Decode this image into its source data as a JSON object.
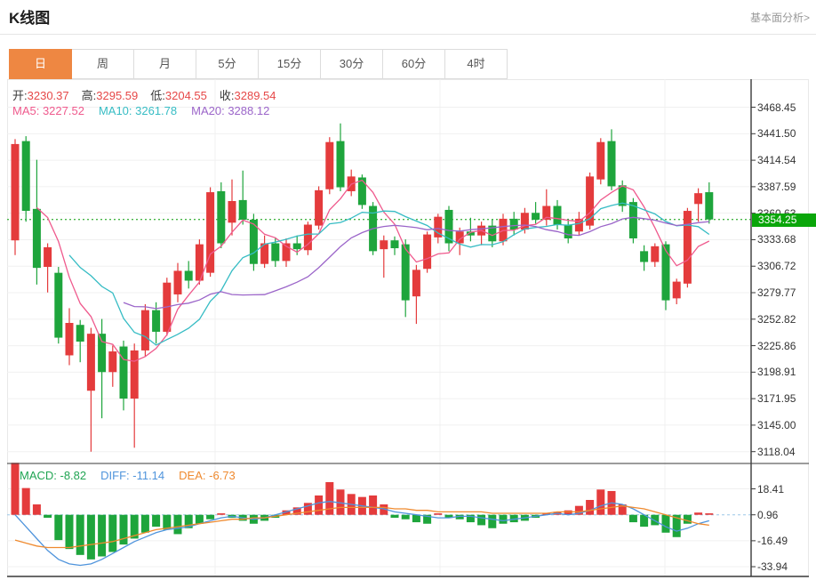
{
  "header": {
    "title": "K线图",
    "link_label": "基本面分析>"
  },
  "tabs": {
    "items": [
      {
        "label": "日",
        "active": true
      },
      {
        "label": "周",
        "active": false
      },
      {
        "label": "月",
        "active": false
      },
      {
        "label": "5分",
        "active": false
      },
      {
        "label": "15分",
        "active": false
      },
      {
        "label": "30分",
        "active": false
      },
      {
        "label": "60分",
        "active": false
      },
      {
        "label": "4时",
        "active": false
      }
    ]
  },
  "legend": {
    "ohlc": [
      {
        "label": "开:",
        "value": "3230.37"
      },
      {
        "label": "高:",
        "value": "3295.59"
      },
      {
        "label": "低:",
        "value": "3204.55"
      },
      {
        "label": "收:",
        "value": "3289.54"
      }
    ],
    "ma": [
      {
        "label": "MA5:",
        "value": "3227.52",
        "color": "#ef5a8d"
      },
      {
        "label": "MA10:",
        "value": "3261.78",
        "color": "#36bcc4"
      },
      {
        "label": "MA20:",
        "value": "3288.12",
        "color": "#9b65c9"
      }
    ]
  },
  "macd_legend": [
    {
      "label": "MACD:",
      "value": "-8.82",
      "color": "#21a453"
    },
    {
      "label": "DIFF:",
      "value": "-11.14",
      "color": "#4f94dc"
    },
    {
      "label": "DEA:",
      "value": "-6.73",
      "color": "#ef8a2f"
    }
  ],
  "price_axis": {
    "tick_labels": [
      "3468.45",
      "3441.50",
      "3414.54",
      "3387.59",
      "3360.63",
      "3333.68",
      "3306.72",
      "3279.77",
      "3252.82",
      "3225.86",
      "3198.91",
      "3171.95",
      "3145.00",
      "3118.04"
    ],
    "tick_values": [
      3468.45,
      3441.5,
      3414.54,
      3387.59,
      3360.63,
      3333.68,
      3306.72,
      3279.77,
      3252.82,
      3225.86,
      3198.91,
      3171.95,
      3145.0,
      3118.04
    ],
    "last_price": "3354.25",
    "last_price_value": 3354.25
  },
  "macd_axis": {
    "tick_labels": [
      "18.41",
      "0.96",
      "-16.49",
      "-33.94"
    ],
    "tick_values": [
      18.41,
      0.96,
      -16.49,
      -33.94
    ]
  },
  "colors": {
    "up": "#e43b3c",
    "down": "#1ea53c",
    "badge": "#0aa60a",
    "dotted_price_line": "#46b546",
    "ma5": "#ef5a8d",
    "ma10": "#36bcc4",
    "ma20": "#9b65c9",
    "diff": "#4f94dc",
    "dea": "#ef8a2f",
    "value_red": "#e64848",
    "grid": "#f0f0f0",
    "axis_dark": "#3a3a3a",
    "zero_dashed": "#9cc7e8",
    "tab_active": "#ee8742"
  },
  "chart_data": [
    {
      "type": "candlestick",
      "title": "K线图 (daily)",
      "ylim": [
        3106,
        3497
      ],
      "price_ticks": [
        3468.45,
        3441.5,
        3414.54,
        3387.59,
        3360.63,
        3333.68,
        3306.72,
        3279.77,
        3252.82,
        3225.86,
        3198.91,
        3171.95,
        3145.0,
        3118.04
      ],
      "last_price": 3354.25,
      "ma_windows": [
        5,
        10,
        20
      ],
      "ma_legend_values": {
        "MA5": 3227.52,
        "MA10": 3261.78,
        "MA20": 3288.12
      },
      "ohlc_legend": {
        "open": 3230.37,
        "high": 3295.59,
        "low": 3204.55,
        "close": 3289.54
      },
      "candles": [
        [
          3333,
          3436,
          3318,
          3431
        ],
        [
          3434,
          3439,
          3352,
          3363
        ],
        [
          3365,
          3415,
          3288,
          3305
        ],
        [
          3306,
          3330,
          3280,
          3326
        ],
        [
          3300,
          3306,
          3228,
          3234
        ],
        [
          3216,
          3264,
          3206,
          3249
        ],
        [
          3247,
          3252,
          3209,
          3230
        ],
        [
          3180,
          3244,
          3118,
          3238
        ],
        [
          3238,
          3253,
          3152,
          3199
        ],
        [
          3199,
          3226,
          3184,
          3220
        ],
        [
          3225,
          3231,
          3160,
          3172
        ],
        [
          3172,
          3228,
          3122,
          3221
        ],
        [
          3221,
          3268,
          3215,
          3262
        ],
        [
          3262,
          3270,
          3228,
          3240
        ],
        [
          3240,
          3295,
          3236,
          3290
        ],
        [
          3278,
          3310,
          3270,
          3302
        ],
        [
          3302,
          3312,
          3284,
          3292
        ],
        [
          3292,
          3334,
          3288,
          3329
        ],
        [
          3300,
          3387,
          3296,
          3382
        ],
        [
          3383,
          3392,
          3325,
          3330
        ],
        [
          3351,
          3395,
          3338,
          3373
        ],
        [
          3374,
          3404,
          3349,
          3354
        ],
        [
          3354,
          3360,
          3302,
          3309
        ],
        [
          3309,
          3338,
          3305,
          3330
        ],
        [
          3330,
          3336,
          3306,
          3312
        ],
        [
          3312,
          3335,
          3306,
          3330
        ],
        [
          3330,
          3338,
          3318,
          3324
        ],
        [
          3323,
          3352,
          3318,
          3349
        ],
        [
          3348,
          3388,
          3344,
          3384
        ],
        [
          3385,
          3438,
          3380,
          3433
        ],
        [
          3434,
          3452,
          3383,
          3387
        ],
        [
          3383,
          3405,
          3378,
          3398
        ],
        [
          3397,
          3400,
          3365,
          3369
        ],
        [
          3368,
          3372,
          3318,
          3322
        ],
        [
          3324,
          3338,
          3295,
          3333
        ],
        [
          3333,
          3337,
          3318,
          3325
        ],
        [
          3329,
          3334,
          3255,
          3272
        ],
        [
          3276,
          3308,
          3248,
          3303
        ],
        [
          3304,
          3342,
          3300,
          3339
        ],
        [
          3336,
          3360,
          3330,
          3357
        ],
        [
          3364,
          3368,
          3322,
          3330
        ],
        [
          3330,
          3346,
          3318,
          3342
        ],
        [
          3342,
          3356,
          3332,
          3338
        ],
        [
          3338,
          3352,
          3328,
          3348
        ],
        [
          3348,
          3354,
          3326,
          3332
        ],
        [
          3332,
          3360,
          3328,
          3355
        ],
        [
          3355,
          3362,
          3338,
          3344
        ],
        [
          3344,
          3366,
          3340,
          3361
        ],
        [
          3361,
          3372,
          3350,
          3354
        ],
        [
          3354,
          3385,
          3348,
          3368
        ],
        [
          3368,
          3374,
          3344,
          3349
        ],
        [
          3349,
          3355,
          3330,
          3335
        ],
        [
          3342,
          3362,
          3338,
          3355
        ],
        [
          3348,
          3402,
          3344,
          3398
        ],
        [
          3395,
          3437,
          3390,
          3433
        ],
        [
          3434,
          3446,
          3384,
          3388
        ],
        [
          3389,
          3394,
          3362,
          3368
        ],
        [
          3372,
          3376,
          3330,
          3335
        ],
        [
          3322,
          3328,
          3302,
          3311
        ],
        [
          3311,
          3330,
          3306,
          3327
        ],
        [
          3329,
          3332,
          3262,
          3272
        ],
        [
          3274,
          3294,
          3268,
          3291
        ],
        [
          3289,
          3366,
          3285,
          3363
        ],
        [
          3370,
          3386,
          3352,
          3381
        ],
        [
          3382,
          3392,
          3350,
          3354.25
        ]
      ]
    },
    {
      "type": "bar",
      "name": "MACD",
      "ylim": [
        -40.5,
        35.5
      ],
      "ticks": [
        18.41,
        0.96,
        -16.49,
        -33.94
      ],
      "legend_values": {
        "MACD": -8.82,
        "DIFF": -11.14,
        "DEA": -6.73
      },
      "values": [
        35,
        18,
        7,
        -2,
        -17,
        -23,
        -27,
        -30,
        -28,
        -25,
        -20,
        -16,
        -12,
        -8,
        -10,
        -13,
        -9,
        -6,
        -3,
        1,
        -2,
        -4,
        -6,
        -4,
        -2,
        3,
        5,
        8,
        13,
        22,
        17,
        14,
        12,
        13,
        7,
        -2,
        -3,
        -5,
        -6,
        1,
        -2,
        -3,
        -5,
        -7,
        -9,
        -6,
        -5,
        -4,
        -2,
        1,
        2,
        3,
        6,
        10,
        17,
        16,
        7,
        -5,
        -8,
        -7,
        -12,
        -15,
        -6,
        1.5,
        1
      ],
      "series": [
        {
          "name": "DIFF",
          "values": [
            0,
            -8,
            -16,
            -24,
            -30,
            -33,
            -34,
            -33,
            -30,
            -26,
            -22,
            -18,
            -15,
            -12,
            -10,
            -9,
            -8,
            -6,
            -4,
            -2,
            -1,
            -2,
            -3,
            -2,
            0,
            2,
            4,
            6,
            8,
            9,
            8,
            7,
            6,
            5,
            4,
            2,
            1,
            0,
            -1,
            -2,
            -2,
            -1,
            -1,
            -2,
            -3,
            -4,
            -3,
            -2,
            -1,
            0,
            1,
            0,
            1,
            3,
            6,
            8,
            7,
            4,
            0,
            -4,
            -8,
            -11,
            -9,
            -6,
            -4
          ]
        },
        {
          "name": "DEA",
          "values": [
            -17,
            -19,
            -21,
            -22,
            -22,
            -22,
            -21,
            -20,
            -19,
            -18,
            -16,
            -14,
            -12,
            -10,
            -9,
            -8,
            -7,
            -6,
            -5,
            -4,
            -3,
            -3,
            -2,
            -2,
            -1,
            0,
            1,
            2,
            3,
            4,
            5,
            5,
            5,
            5,
            5,
            4,
            4,
            3,
            3,
            2,
            2,
            2,
            2,
            2,
            1,
            1,
            1,
            1,
            1,
            1,
            2,
            2,
            2,
            3,
            4,
            5,
            6,
            5,
            4,
            2,
            0,
            -2,
            -4,
            -6,
            -7
          ]
        }
      ]
    }
  ]
}
